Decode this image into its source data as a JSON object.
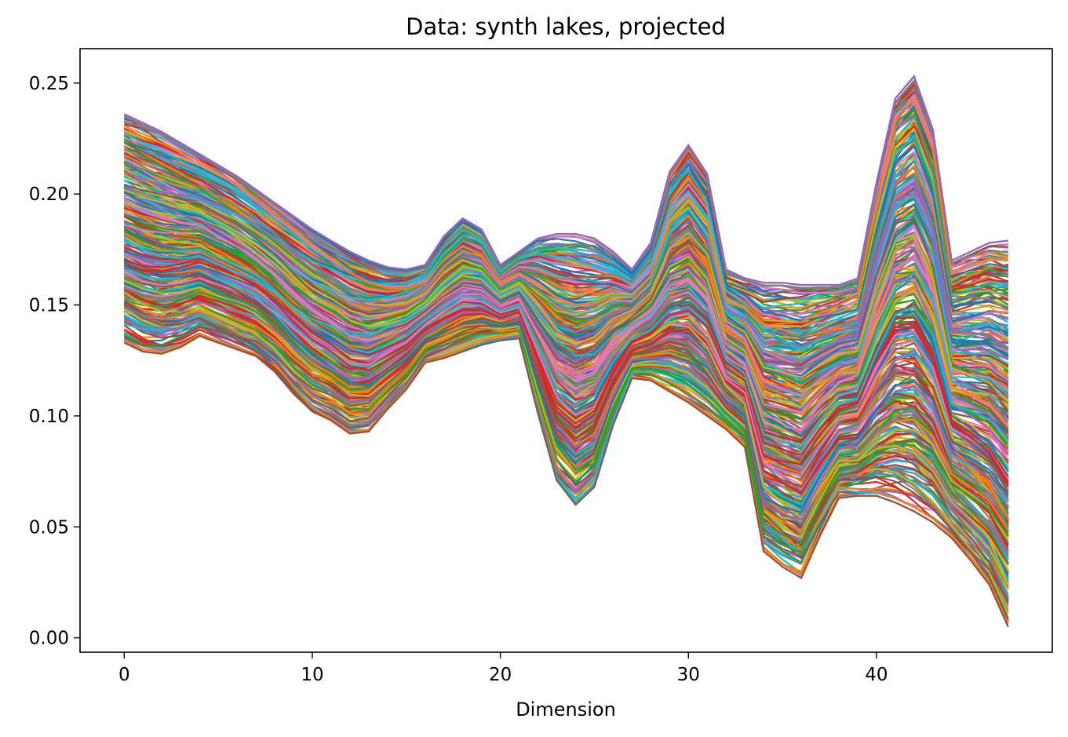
{
  "chart_data": {
    "type": "line",
    "title": "Data: synth lakes, projected",
    "xlabel": "Dimension",
    "ylabel": "",
    "xlim": [
      -2.35,
      49.35
    ],
    "ylim": [
      -0.0065,
      0.2655
    ],
    "xticks": [
      0,
      10,
      20,
      30,
      40
    ],
    "xtick_labels": [
      "0",
      "10",
      "20",
      "30",
      "40"
    ],
    "yticks": [
      0.0,
      0.05,
      0.1,
      0.15,
      0.2,
      0.25
    ],
    "ytick_labels": [
      "0.00",
      "0.05",
      "0.10",
      "0.15",
      "0.20",
      "0.25"
    ],
    "x": [
      0,
      1,
      2,
      3,
      4,
      5,
      6,
      7,
      8,
      9,
      10,
      11,
      12,
      13,
      14,
      15,
      16,
      17,
      18,
      19,
      20,
      21,
      22,
      23,
      24,
      25,
      26,
      27,
      28,
      29,
      30,
      31,
      32,
      33,
      34,
      35,
      36,
      37,
      38,
      39,
      40,
      41,
      42,
      43,
      44,
      45,
      46,
      47
    ],
    "n_series": 400,
    "palette": [
      "#1f77b4",
      "#ff7f0e",
      "#2ca02c",
      "#d62728",
      "#9467bd",
      "#8c564b",
      "#e377c2",
      "#7f7f7f",
      "#bcbd22",
      "#17becf"
    ],
    "envelope_upper": [
      0.236,
      0.232,
      0.228,
      0.223,
      0.218,
      0.213,
      0.208,
      0.202,
      0.196,
      0.19,
      0.184,
      0.179,
      0.174,
      0.17,
      0.167,
      0.166,
      0.168,
      0.181,
      0.189,
      0.184,
      0.168,
      0.174,
      0.18,
      0.182,
      0.182,
      0.18,
      0.174,
      0.166,
      0.178,
      0.21,
      0.222,
      0.209,
      0.166,
      0.162,
      0.16,
      0.16,
      0.159,
      0.159,
      0.159,
      0.162,
      0.205,
      0.243,
      0.253,
      0.229,
      0.17,
      0.174,
      0.178,
      0.179
    ],
    "envelope_lower": [
      0.133,
      0.129,
      0.128,
      0.131,
      0.136,
      0.133,
      0.13,
      0.127,
      0.12,
      0.11,
      0.102,
      0.098,
      0.092,
      0.093,
      0.103,
      0.112,
      0.124,
      0.126,
      0.129,
      0.132,
      0.134,
      0.135,
      0.101,
      0.071,
      0.06,
      0.068,
      0.096,
      0.117,
      0.116,
      0.111,
      0.106,
      0.1,
      0.094,
      0.086,
      0.039,
      0.032,
      0.027,
      0.046,
      0.063,
      0.064,
      0.064,
      0.061,
      0.057,
      0.052,
      0.045,
      0.035,
      0.024,
      0.005
    ]
  }
}
